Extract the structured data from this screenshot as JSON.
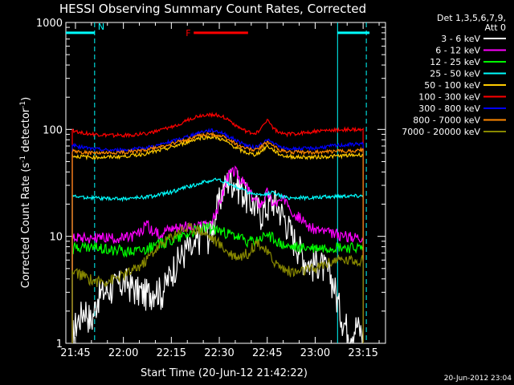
{
  "chart_data": {
    "type": "line",
    "title": "HESSI Observing Summary Count Rates, Corrected",
    "xlabel": "Start Time (20-Jun-12 21:42:22)",
    "ylabel": "Corrected Count Rate (s",
    "ylabel_sup1": "-1",
    "ylabel_mid": " detector",
    "ylabel_sup2": "-1",
    "ylabel_end": ")",
    "yscale": "log",
    "ylim": [
      1,
      1000
    ],
    "xlim_minutes": [
      -3,
      97
    ],
    "x_tick_labels": [
      "21:45",
      "22:00",
      "22:15",
      "22:30",
      "22:45",
      "23:00",
      "23:15"
    ],
    "y_tick_labels": [
      "1",
      "10",
      "100",
      "1000"
    ],
    "legend_title": [
      "Det 1,3,5,6,7,9,",
      "Att 0"
    ],
    "timestamp": "20-Jun-2012 23:04",
    "annotations": [
      {
        "label": "N",
        "color": "#00ffff",
        "x_start": -3,
        "x_end": 6,
        "y": 800
      },
      {
        "label": "F",
        "color": "#ff0000",
        "x_start": 37,
        "x_end": 54,
        "y": 800
      },
      {
        "label": "",
        "color": "#00ffff",
        "x_start": 82,
        "x_end": 92,
        "y": 800
      }
    ],
    "vlines": [
      {
        "x": 6,
        "color": "#00ffff",
        "style": "dashed"
      },
      {
        "x": 82,
        "color": "#00ffff",
        "style": "solid"
      },
      {
        "x": 91,
        "color": "#00ffff",
        "style": "dashed"
      }
    ],
    "series": [
      {
        "name": "3 - 6 keV",
        "color": "#ffffff",
        "x": [
          -1,
          0,
          3,
          5,
          7,
          10,
          13,
          16,
          19,
          21,
          23,
          25,
          27,
          29,
          31,
          33,
          35,
          37,
          38,
          40,
          42,
          44,
          46,
          48,
          50,
          52,
          54,
          56,
          58,
          60,
          62,
          64,
          66,
          68,
          70,
          72,
          74,
          76,
          78,
          80,
          81,
          82,
          84,
          86,
          88,
          90
        ],
        "y": [
          1.2,
          1.5,
          2.2,
          1.6,
          2.8,
          3.2,
          3.5,
          3.8,
          3.2,
          3.0,
          3.0,
          3.4,
          3.0,
          4.0,
          5.5,
          6.5,
          8.0,
          7.0,
          9.0,
          12,
          10,
          17,
          27,
          35,
          33,
          28,
          22,
          20,
          17,
          19,
          22,
          18,
          14,
          10,
          8,
          6,
          5.5,
          6,
          5,
          4.2,
          3.5,
          2.5,
          1.6,
          1.3,
          1.5,
          1.2
        ]
      },
      {
        "name": "6 - 12 keV",
        "color": "#ff00ff",
        "x": [
          -1,
          0,
          3,
          6,
          9,
          12,
          15,
          18,
          21,
          22,
          24,
          26,
          28,
          30,
          32,
          34,
          36,
          38,
          40,
          42,
          44,
          46,
          48,
          50,
          52,
          54,
          56,
          58,
          60,
          62,
          64,
          66,
          68,
          70,
          72,
          74,
          76,
          78,
          80,
          82,
          84,
          86,
          88,
          90
        ],
        "y": [
          9.5,
          10,
          9.8,
          9.6,
          9.7,
          9.6,
          9.5,
          10,
          11,
          14,
          11,
          10.5,
          11.5,
          12,
          12.5,
          12.5,
          12,
          12,
          13,
          13,
          16,
          25,
          38,
          41,
          33,
          28,
          22,
          20,
          26,
          20,
          21,
          23,
          17,
          15,
          13,
          12,
          11.5,
          11,
          10.5,
          10.5,
          10,
          10,
          10,
          10
        ]
      },
      {
        "name": "12 - 25 keV",
        "color": "#00ff00",
        "x": [
          -1,
          0,
          4,
          8,
          12,
          16,
          20,
          24,
          28,
          32,
          36,
          38,
          40,
          42,
          44,
          46,
          48,
          50,
          52,
          54,
          56,
          58,
          60,
          62,
          64,
          66,
          70,
          74,
          78,
          82,
          86,
          90
        ],
        "y": [
          7.5,
          8,
          7.8,
          7.8,
          7.5,
          7.3,
          7.5,
          8,
          8.8,
          9.8,
          11,
          11.5,
          12,
          12,
          11.5,
          11,
          10.5,
          10,
          9.5,
          9,
          9,
          9.5,
          10.5,
          9.5,
          8.5,
          8,
          7.8,
          7.8,
          7.8,
          8,
          7.8,
          7.8
        ]
      },
      {
        "name": "25 - 50 keV",
        "color": "#00ffff",
        "x": [
          -1,
          0,
          5,
          10,
          15,
          20,
          25,
          30,
          35,
          40,
          42,
          44,
          46,
          48,
          50,
          52,
          54,
          56,
          58,
          60,
          62,
          64,
          66,
          70,
          75,
          80,
          85,
          90
        ],
        "y": [
          24,
          23.5,
          23,
          22.5,
          22.5,
          23,
          24,
          26,
          29,
          32,
          33,
          34,
          33,
          31,
          29,
          28,
          26,
          25,
          24,
          25,
          26,
          24,
          23,
          23,
          23,
          23.5,
          24,
          24
        ]
      },
      {
        "name": "50 - 100 keV",
        "color": "#ffcc00",
        "x": [
          -1,
          0,
          5,
          10,
          15,
          20,
          25,
          30,
          35,
          38,
          40,
          42,
          44,
          46,
          48,
          50,
          52,
          54,
          56,
          58,
          60,
          62,
          64,
          66,
          70,
          75,
          80,
          85,
          90
        ],
        "y": [
          57,
          56,
          55,
          55,
          56,
          58,
          62,
          68,
          76,
          82,
          84,
          85,
          84,
          80,
          74,
          68,
          63,
          60,
          58,
          62,
          70,
          64,
          58,
          56,
          55,
          55,
          56,
          57,
          58
        ]
      },
      {
        "name": "100 - 300 keV",
        "color": "#ff0000",
        "x": [
          -1,
          0,
          5,
          10,
          15,
          20,
          25,
          30,
          33,
          36,
          38,
          40,
          42,
          44,
          46,
          48,
          50,
          52,
          54,
          56,
          58,
          60,
          62,
          64,
          66,
          70,
          75,
          80,
          85,
          90
        ],
        "y": [
          99,
          96,
          90,
          88,
          88,
          90,
          95,
          105,
          115,
          125,
          132,
          136,
          138,
          137,
          132,
          122,
          110,
          100,
          94,
          92,
          100,
          125,
          102,
          92,
          90,
          92,
          96,
          98,
          100,
          98
        ]
      },
      {
        "name": "300 - 800 keV",
        "color": "#0000ff",
        "x": [
          -1,
          0,
          5,
          10,
          15,
          20,
          25,
          30,
          35,
          38,
          40,
          42,
          44,
          46,
          48,
          50,
          52,
          54,
          56,
          58,
          60,
          62,
          64,
          66,
          70,
          75,
          80,
          85,
          90
        ],
        "y": [
          72,
          70,
          66,
          64,
          64,
          66,
          70,
          77,
          86,
          92,
          96,
          98,
          97,
          93,
          86,
          80,
          74,
          70,
          68,
          72,
          80,
          74,
          68,
          66,
          66,
          67,
          70,
          72,
          74
        ]
      },
      {
        "name": "800 - 7000 keV",
        "color": "#ff8800",
        "x": [
          -1,
          0,
          5,
          10,
          15,
          20,
          25,
          30,
          35,
          38,
          40,
          42,
          44,
          46,
          48,
          50,
          52,
          54,
          56,
          58,
          60,
          62,
          64,
          66,
          70,
          75,
          80,
          85,
          90
        ],
        "y": [
          63,
          62,
          60,
          60,
          61,
          63,
          67,
          73,
          81,
          86,
          89,
          90,
          89,
          86,
          80,
          74,
          69,
          66,
          64,
          68,
          76,
          70,
          64,
          62,
          61,
          61,
          62,
          63,
          64
        ]
      },
      {
        "name": "7000 - 20000 keV",
        "color": "#888800",
        "x": [
          -1,
          0,
          3,
          6,
          9,
          12,
          15,
          18,
          21,
          24,
          27,
          30,
          33,
          36,
          39,
          42,
          45,
          48,
          51,
          54,
          57,
          60,
          63,
          66,
          69,
          72,
          75,
          78,
          81,
          84,
          87,
          90
        ],
        "y": [
          4.5,
          4.6,
          4.2,
          3.8,
          3.8,
          4.0,
          4.3,
          4.8,
          5.5,
          7.0,
          8.5,
          10,
          11.5,
          12,
          11.5,
          10,
          8.5,
          7.0,
          6.5,
          7.0,
          9.0,
          7.0,
          5.5,
          4.8,
          4.6,
          4.8,
          5.0,
          5.5,
          6.0,
          6.0,
          6.0,
          6.0
        ]
      }
    ]
  }
}
